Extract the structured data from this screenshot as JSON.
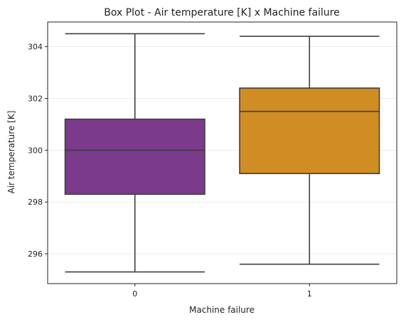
{
  "chart_data": {
    "type": "box",
    "title": "Box Plot - Air temperature [K] x Machine failure",
    "xlabel": "Machine failure",
    "ylabel": "Air temperature [K]",
    "categories": [
      "0",
      "1"
    ],
    "ylim": [
      294.85,
      304.95
    ],
    "yticks": [
      296,
      298,
      300,
      302,
      304
    ],
    "grid": "y",
    "boxes": [
      {
        "category": "0",
        "whisker_low": 295.3,
        "q1": 298.3,
        "median": 300.0,
        "q3": 301.2,
        "whisker_high": 304.5,
        "color": "#7b3a8c"
      },
      {
        "category": "1",
        "whisker_low": 295.6,
        "q1": 299.1,
        "median": 301.5,
        "q3": 302.4,
        "whisker_high": 304.4,
        "color": "#cf8d23"
      }
    ]
  }
}
